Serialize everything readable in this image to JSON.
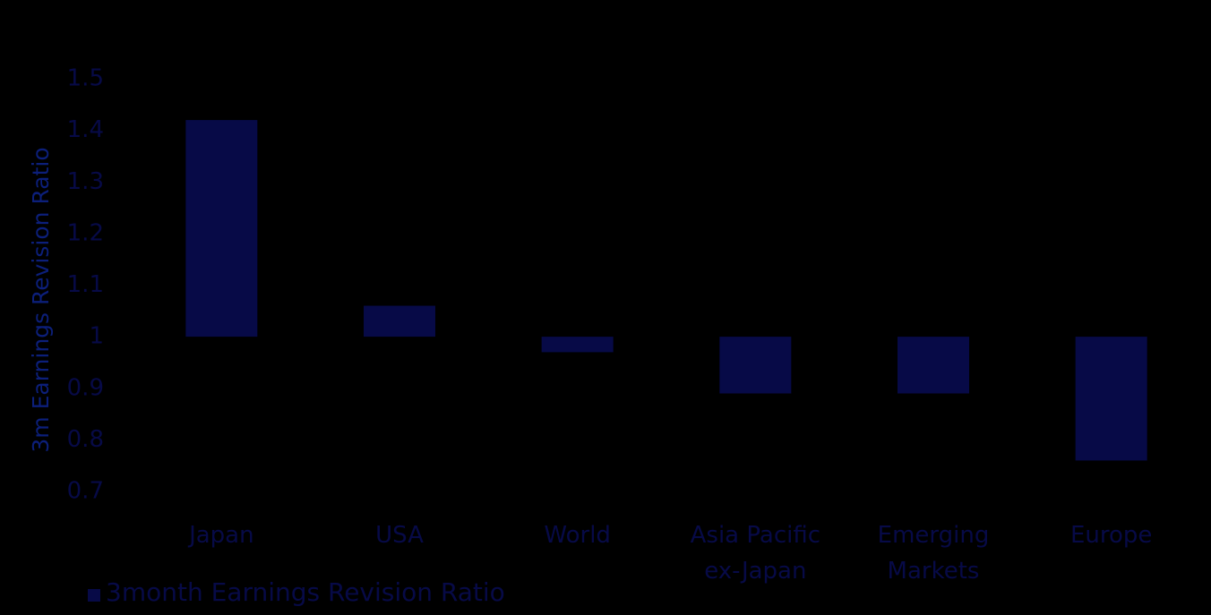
{
  "chart_data": {
    "type": "bar",
    "title": "",
    "xlabel": "",
    "ylabel": "3m Earnings Revision Ratio",
    "categories": [
      [
        "Japan"
      ],
      [
        "USA"
      ],
      [
        "World"
      ],
      [
        "Asia Pacific",
        "ex-Japan"
      ],
      [
        "Emerging",
        "Markets"
      ],
      [
        "Europe"
      ]
    ],
    "series": [
      {
        "name": "3month Earnings Revision Ratio",
        "values": [
          1.42,
          1.06,
          0.97,
          0.89,
          0.89,
          0.76
        ],
        "color": "#070a47"
      }
    ],
    "baseline": 1,
    "ylim": [
      0.7,
      1.5
    ],
    "yticks": [
      "0.7",
      "0.8",
      "0.9",
      "1",
      "1.1",
      "1.2",
      "1.3",
      "1.4",
      "1.5"
    ],
    "grid": false,
    "legend_position": "bottom-left",
    "colors": {
      "background": "#000000",
      "bar": "#070a47",
      "text": "#070a47",
      "ylabel": "#0c1f7a"
    }
  }
}
